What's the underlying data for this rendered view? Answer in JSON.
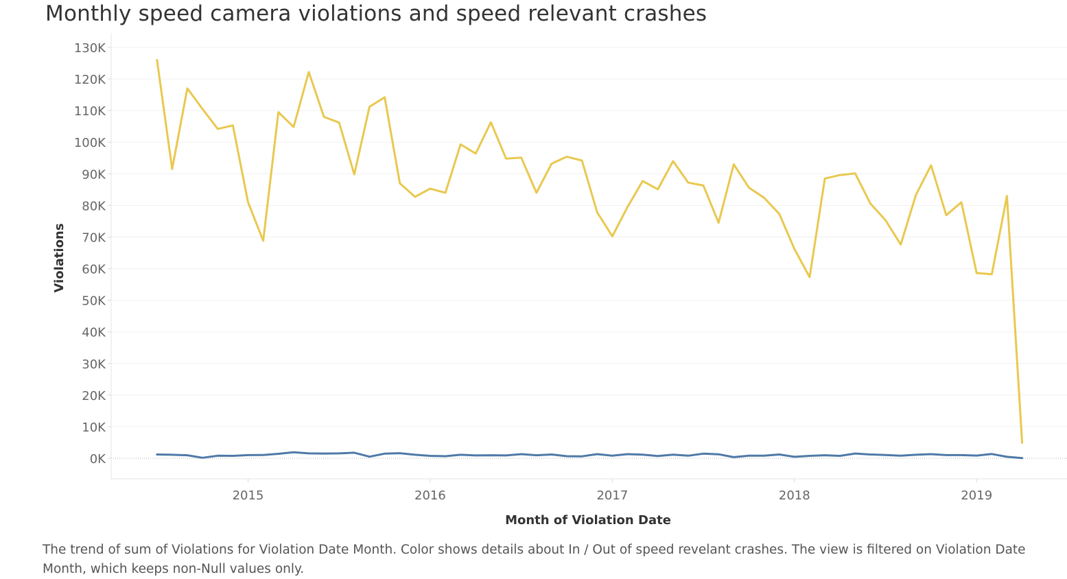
{
  "title": "Monthly speed camera violations and speed relevant crashes",
  "caption": "The trend of sum of Violations for Violation Date Month.  Color shows details about In / Out of speed revelant crashes. The view is filtered on Violation Date Month, which keeps non-Null values only.",
  "chart_data": {
    "type": "line",
    "xlabel": "Month of Violation Date",
    "ylabel": "Violations",
    "ylim": [
      -6500,
      130000
    ],
    "yticks": [
      0,
      10000,
      20000,
      30000,
      40000,
      50000,
      60000,
      70000,
      80000,
      90000,
      100000,
      110000,
      120000,
      130000
    ],
    "ytick_labels": [
      "0K",
      "10K",
      "20K",
      "30K",
      "40K",
      "50K",
      "60K",
      "70K",
      "80K",
      "90K",
      "100K",
      "110K",
      "120K",
      "130K"
    ],
    "xticks": [
      "2015",
      "2016",
      "2017",
      "2018",
      "2019"
    ],
    "xlim": [
      "2014-04",
      "2019-05"
    ],
    "grid": true,
    "x": [
      "2014-07",
      "2014-08",
      "2014-09",
      "2014-10",
      "2014-11",
      "2014-12",
      "2015-01",
      "2015-02",
      "2015-03",
      "2015-04",
      "2015-05",
      "2015-06",
      "2015-07",
      "2015-08",
      "2015-09",
      "2015-10",
      "2015-11",
      "2015-12",
      "2016-01",
      "2016-02",
      "2016-03",
      "2016-04",
      "2016-05",
      "2016-06",
      "2016-07",
      "2016-08",
      "2016-09",
      "2016-10",
      "2016-11",
      "2016-12",
      "2017-01",
      "2017-02",
      "2017-03",
      "2017-04",
      "2017-05",
      "2017-06",
      "2017-07",
      "2017-08",
      "2017-09",
      "2017-10",
      "2017-11",
      "2017-12",
      "2018-01",
      "2018-02",
      "2018-03",
      "2018-04",
      "2018-05",
      "2018-06",
      "2018-07",
      "2018-08",
      "2018-09",
      "2018-10",
      "2018-11",
      "2018-12",
      "2019-01",
      "2019-02",
      "2019-03",
      "2019-04"
    ],
    "series": [
      {
        "color": "#e9c84f",
        "values": [
          126000,
          91500,
          117000,
          110500,
          104200,
          105300,
          81000,
          68800,
          109500,
          104800,
          122200,
          108000,
          106200,
          89800,
          111200,
          114200,
          87000,
          82700,
          85300,
          84000,
          99300,
          96400,
          106300,
          94800,
          95100,
          84000,
          93200,
          95400,
          94200,
          77800,
          70200,
          79500,
          87700,
          85100,
          94000,
          87200,
          86300,
          74500,
          93000,
          85600,
          82400,
          77300,
          66200,
          57300,
          88500,
          89600,
          90100,
          80600,
          75300,
          67600,
          83300,
          92700,
          76900,
          81000,
          58600,
          58200,
          83000,
          4900
        ]
      },
      {
        "color": "#4e79a7",
        "values": [
          1200,
          1100,
          950,
          150,
          800,
          750,
          1000,
          1050,
          1400,
          1900,
          1550,
          1500,
          1550,
          1750,
          500,
          1450,
          1600,
          1100,
          750,
          650,
          1100,
          900,
          950,
          900,
          1300,
          950,
          1200,
          650,
          600,
          1300,
          800,
          1300,
          1150,
          700,
          1150,
          800,
          1450,
          1250,
          350,
          800,
          800,
          1200,
          450,
          750,
          950,
          750,
          1500,
          1200,
          1050,
          800,
          1100,
          1300,
          1000,
          1000,
          850,
          1350,
          450,
          50
        ]
      }
    ]
  }
}
